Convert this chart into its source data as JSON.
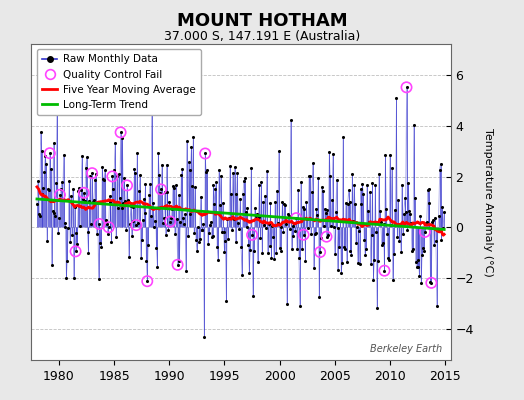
{
  "title": "MOUNT HOTHAM",
  "subtitle": "37.000 S, 147.191 E (Australia)",
  "ylabel": "Temperature Anomaly (°C)",
  "xlim": [
    1977.5,
    2015.5
  ],
  "ylim": [
    -5.2,
    7.2
  ],
  "yticks": [
    -4,
    -2,
    0,
    2,
    4,
    6
  ],
  "xticks": [
    1980,
    1985,
    1990,
    1995,
    2000,
    2005,
    2010,
    2015
  ],
  "background_color": "#e8e8e8",
  "plot_background": "#ffffff",
  "raw_line_color": "#3333cc",
  "raw_marker_color": "#000000",
  "qc_fail_color": "#ff44ff",
  "moving_avg_color": "#ff0000",
  "trend_color": "#00bb00",
  "watermark": "Berkeley Earth",
  "seed": 12345
}
